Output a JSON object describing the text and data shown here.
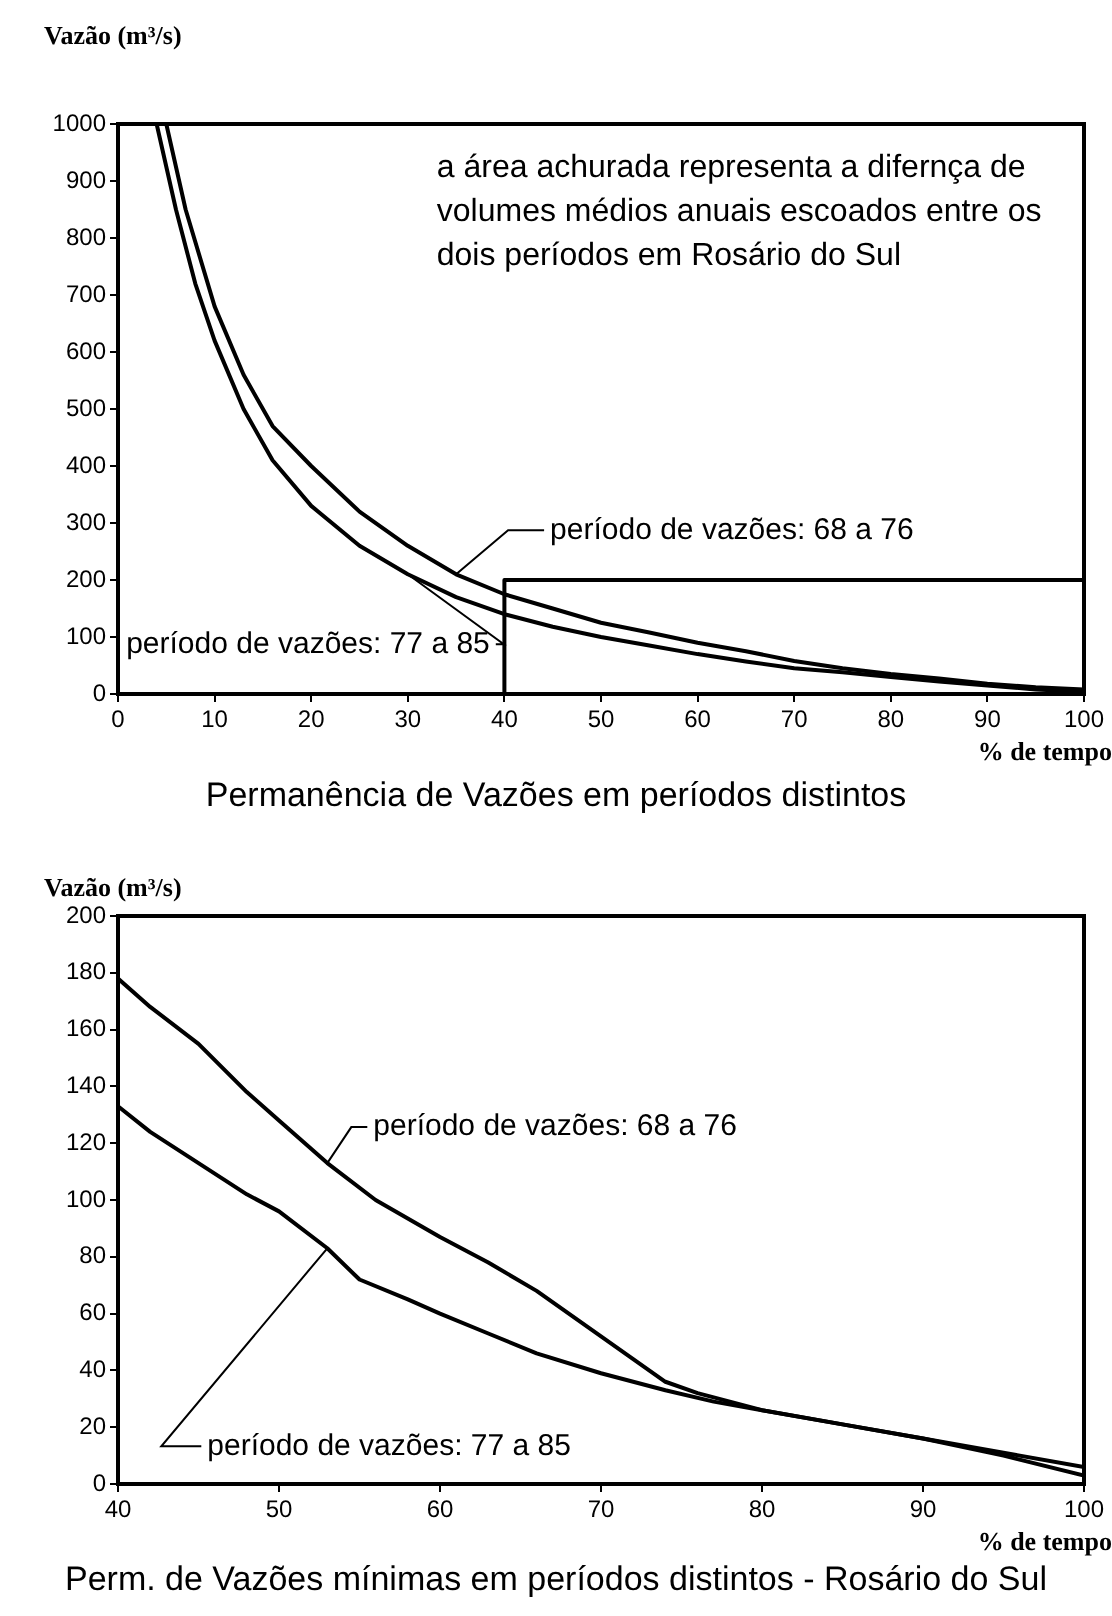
{
  "chart_data": [
    {
      "type": "line",
      "title": "Permanência de Vazões em períodos distintos",
      "xlabel": "% de tempo",
      "ylabel": "Vazão  (m³/s)",
      "annotations": [
        "a área achurada representa a difernça de volumes médios anuais escoados entre os dois períodos em Rosário do Sul"
      ],
      "xlim": [
        0,
        100
      ],
      "ylim": [
        0,
        1000
      ],
      "xticks": [
        0,
        10,
        20,
        30,
        40,
        50,
        60,
        70,
        80,
        90,
        100
      ],
      "yticks": [
        0,
        100,
        200,
        300,
        400,
        500,
        600,
        700,
        800,
        900,
        1000
      ],
      "marker": "none",
      "line_style": "solid",
      "series": [
        {
          "name": "período de vazões: 68 a 76",
          "color": "#000000",
          "x": [
            5,
            7,
            10,
            13,
            16,
            20,
            25,
            30,
            35,
            40,
            45,
            50,
            55,
            60,
            65,
            70,
            75,
            80,
            85,
            90,
            95,
            100
          ],
          "values": [
            1000,
            850,
            680,
            560,
            470,
            400,
            320,
            260,
            210,
            175,
            150,
            125,
            108,
            90,
            75,
            58,
            45,
            35,
            27,
            18,
            12,
            8
          ]
        },
        {
          "name": "período de vazões: 77 a 85",
          "color": "#000000",
          "x": [
            4,
            6,
            8,
            10,
            13,
            16,
            20,
            25,
            30,
            35,
            40,
            45,
            50,
            55,
            60,
            65,
            70,
            75,
            80,
            85,
            90,
            95,
            100
          ],
          "values": [
            1000,
            850,
            720,
            620,
            500,
            410,
            330,
            260,
            210,
            170,
            140,
            118,
            100,
            85,
            70,
            57,
            45,
            38,
            30,
            22,
            15,
            8,
            4
          ]
        },
        {
          "color": "#000000",
          "x": [
            40,
            40,
            100
          ],
          "values": [
            0,
            200,
            200
          ]
        }
      ]
    },
    {
      "type": "line",
      "title": "Perm. de Vazões mínimas em períodos distintos - Rosário do Sul",
      "xlabel": "% de tempo",
      "ylabel": "Vazão  (m³/s)",
      "xlim": [
        40,
        100
      ],
      "ylim": [
        0,
        200
      ],
      "xticks": [
        40,
        50,
        60,
        70,
        80,
        90,
        100
      ],
      "yticks": [
        0,
        20,
        40,
        60,
        80,
        100,
        120,
        140,
        160,
        180,
        200
      ],
      "marker": "none",
      "line_style": "solid",
      "series": [
        {
          "name": "período de vazões: 68 a 76",
          "color": "#000000",
          "x": [
            40,
            42,
            45,
            48,
            50,
            53,
            56,
            60,
            63,
            66,
            70,
            72,
            74,
            76,
            80,
            85,
            90,
            95,
            100
          ],
          "values": [
            178,
            168,
            155,
            138,
            128,
            113,
            100,
            87,
            78,
            68,
            52,
            44,
            36,
            32,
            26,
            21,
            16,
            11,
            6
          ]
        },
        {
          "name": "período de vazões: 77 a 85",
          "color": "#000000",
          "x": [
            40,
            42,
            45,
            48,
            50,
            53,
            55,
            58,
            60,
            63,
            66,
            70,
            74,
            77,
            80,
            85,
            90,
            95,
            100
          ],
          "values": [
            133,
            124,
            113,
            102,
            96,
            83,
            72,
            65,
            60,
            53,
            46,
            39,
            33,
            29,
            26,
            21,
            16,
            10,
            3
          ]
        }
      ]
    }
  ]
}
